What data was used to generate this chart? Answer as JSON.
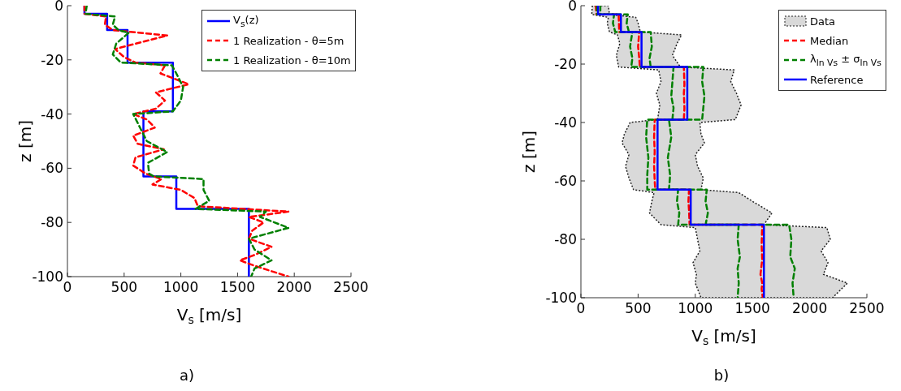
{
  "chart_data": [
    {
      "type": "line",
      "xlabel": "V$_{s}$ [m/s]",
      "ylabel": "z [m]",
      "xlim": [
        0,
        2500
      ],
      "xticks": [
        0,
        500,
        1000,
        1500,
        2000,
        2500
      ],
      "ylim": [
        -100,
        0
      ],
      "yticks": [
        -100,
        -80,
        -60,
        -40,
        -20,
        0
      ],
      "legend": "top right",
      "marker": "none",
      "annotations": [
        "a)"
      ],
      "series": [
        {
          "name": "V$_{s}$(z)",
          "color": "#0000ff",
          "line_style": "solid",
          "x": [
            150,
            150,
            350,
            350,
            530,
            530,
            930,
            930,
            670,
            670,
            960,
            960,
            1600,
            1600
          ],
          "values": [
            0,
            -3,
            -3,
            -9,
            -9,
            -21,
            -21,
            -39,
            -39,
            -63,
            -63,
            -75,
            -75,
            -100
          ]
        },
        {
          "name": "1 Realization - θ=5m",
          "color": "#ff0000",
          "line_style": "dashed",
          "x": [
            150,
            150,
            340,
            330,
            400,
            880,
            420,
            500,
            600,
            860,
            820,
            1070,
            780,
            860,
            780,
            580,
            700,
            770,
            580,
            620,
            850,
            600,
            580,
            690,
            830,
            750,
            1000,
            1120,
            1150,
            1950,
            1600,
            1730,
            1630,
            1600,
            1800,
            1650,
            1520,
            1650,
            1950
          ],
          "values": [
            0,
            -3,
            -4,
            -7,
            -9,
            -11,
            -16,
            -19,
            -21,
            -22,
            -25,
            -29,
            -32,
            -35,
            -38,
            -40,
            -42,
            -45,
            -48,
            -51,
            -53,
            -56,
            -59,
            -62,
            -64,
            -66,
            -68,
            -71,
            -74,
            -76,
            -78,
            -80,
            -83,
            -86,
            -89,
            -92,
            -94,
            -96,
            -100
          ]
        },
        {
          "name": "1 Realization - θ=10m",
          "color": "#008000",
          "line_style": "dashed",
          "x": [
            170,
            160,
            420,
            400,
            450,
            540,
            430,
            400,
            470,
            920,
            960,
            1020,
            1000,
            930,
            580,
            640,
            700,
            880,
            710,
            720,
            760,
            1200,
            1200,
            1250,
            1130,
            1750,
            1700,
            1950,
            1600,
            1650,
            1800,
            1650,
            1620
          ],
          "values": [
            0,
            -3,
            -4,
            -7,
            -9,
            -10,
            -14,
            -18,
            -21,
            -22,
            -25,
            -30,
            -35,
            -39,
            -40,
            -45,
            -50,
            -54,
            -58,
            -62,
            -63,
            -64,
            -68,
            -72,
            -75,
            -76,
            -78,
            -82,
            -86,
            -90,
            -94,
            -97,
            -100
          ]
        }
      ]
    },
    {
      "type": "line",
      "xlabel": "V$_{s}$ [m/s]",
      "ylabel": "z [m]",
      "xlim": [
        0,
        2500
      ],
      "xticks": [
        0,
        500,
        1000,
        1500,
        2000,
        2500
      ],
      "ylim": [
        -100,
        0
      ],
      "yticks": [
        -100,
        -80,
        -60,
        -40,
        -20,
        0
      ],
      "legend": "top right",
      "marker": "none",
      "annotations": [
        "b)"
      ],
      "series": [
        {
          "name": "Data",
          "type": "area",
          "color": "#d9d9d9",
          "line_style": "dotted",
          "x": [
            100,
            95,
            240,
            230,
            250,
            320,
            340,
            310,
            330,
            680,
            700,
            660,
            690,
            670,
            430,
            380,
            360,
            420,
            390,
            420,
            460,
            640,
            620,
            600,
            700,
            1000,
            1020,
            1040,
            980,
            1010,
            1000,
            1050,
            2200,
            2330,
            2120,
            2160,
            2100,
            2180,
            2150,
            1600,
            1670,
            1500,
            1380,
            1050,
            1070,
            1020,
            1000,
            1080,
            1050,
            1040,
            1350,
            1400,
            1360,
            1310,
            1340,
            870,
            800,
            840,
            880,
            520,
            500,
            480,
            250,
            240
          ],
          "values": [
            0,
            -3,
            -4,
            -6,
            -9,
            -10,
            -13,
            -17,
            -21,
            -22,
            -26,
            -30,
            -34,
            -39,
            -40,
            -44,
            -47,
            -51,
            -55,
            -59,
            -63,
            -64,
            -67,
            -71,
            -75,
            -76,
            -80,
            -84,
            -88,
            -92,
            -95,
            -100,
            -100,
            -95,
            -92,
            -88,
            -84,
            -80,
            -76,
            -75,
            -71,
            -67,
            -64,
            -63,
            -59,
            -55,
            -51,
            -47,
            -44,
            -40,
            -39,
            -34,
            -30,
            -26,
            -22,
            -21,
            -17,
            -13,
            -10,
            -9,
            -6,
            -4,
            -3,
            0
          ]
        },
        {
          "name": "Median",
          "color": "#ff0000",
          "line_style": "dashed",
          "x": [
            130,
            135,
            330,
            335,
            510,
            500,
            510,
            515,
            900,
            905,
            900,
            905,
            900,
            645,
            640,
            645,
            640,
            645,
            650,
            945,
            940,
            945,
            950,
            1585,
            1580,
            1585,
            1570,
            1585,
            1580,
            1590
          ],
          "values": [
            0,
            -3,
            -3,
            -9,
            -9,
            -14,
            -18,
            -21,
            -21,
            -27,
            -30,
            -35,
            -39,
            -39,
            -45,
            -50,
            -55,
            -60,
            -63,
            -63,
            -67,
            -70,
            -75,
            -75,
            -82,
            -87,
            -92,
            -95,
            -97,
            -100
          ]
        },
        {
          "name": "λ$_{ln Vs}$ ± σ$_{ln Vs}$",
          "color": "#008000",
          "line_style": "dashed",
          "x": [
            140,
            140,
            290,
            280,
            300,
            450,
            430,
            450,
            440,
            810,
            800,
            790,
            810,
            800,
            580,
            570,
            590,
            580,
            580,
            850,
            840,
            860,
            850,
            1380,
            1370,
            1390,
            1370,
            1380,
            1370
          ],
          "values": [
            0,
            -3,
            -3,
            -6,
            -9,
            -9,
            -14,
            -18,
            -21,
            -21,
            -26,
            -31,
            -35,
            -39,
            -39,
            -45,
            -52,
            -58,
            -63,
            -63,
            -67,
            -71,
            -75,
            -75,
            -80,
            -86,
            -90,
            -95,
            -100
          ]
        },
        {
          "color": "#008000",
          "line_style": "dashed",
          "x": [
            170,
            170,
            410,
            400,
            420,
            610,
            620,
            600,
            610,
            1070,
            1060,
            1080,
            1070,
            1060,
            770,
            790,
            760,
            780,
            770,
            1100,
            1090,
            1110,
            1090,
            1820,
            1840,
            1830,
            1870,
            1850,
            1860
          ],
          "values": [
            0,
            -3,
            -3,
            -6,
            -9,
            -9,
            -14,
            -18,
            -21,
            -21,
            -26,
            -31,
            -35,
            -39,
            -39,
            -45,
            -52,
            -58,
            -63,
            -63,
            -67,
            -71,
            -75,
            -75,
            -80,
            -86,
            -90,
            -95,
            -100
          ]
        },
        {
          "name": "Reference",
          "color": "#0000ff",
          "line_style": "solid",
          "x": [
            150,
            150,
            350,
            350,
            530,
            530,
            930,
            930,
            670,
            670,
            960,
            960,
            1600,
            1600
          ],
          "values": [
            0,
            -3,
            -3,
            -9,
            -9,
            -21,
            -21,
            -39,
            -39,
            -63,
            -63,
            -75,
            -75,
            -100
          ]
        }
      ]
    }
  ]
}
